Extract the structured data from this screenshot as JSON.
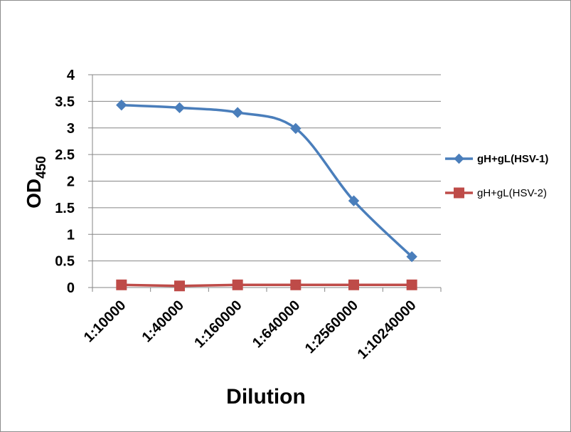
{
  "chart_data": {
    "type": "line",
    "categories": [
      "1:10000",
      "1:40000",
      "1:160000",
      "1:640000",
      "1:2560000",
      "1:10240000"
    ],
    "series": [
      {
        "name": "gH+gL(HSV-1)",
        "values": [
          3.43,
          3.38,
          3.29,
          2.99,
          1.63,
          0.58
        ],
        "color": "#4a7ebb",
        "marker": "diamond",
        "smooth": true,
        "legend_bold": true
      },
      {
        "name": "gH+gL(HSV-2)",
        "values": [
          0.05,
          0.03,
          0.05,
          0.05,
          0.05,
          0.05
        ],
        "color": "#be4b48",
        "marker": "square",
        "smooth": false,
        "legend_bold": false
      }
    ],
    "yticks": [
      "0",
      "0.5",
      "1",
      "1.5",
      "2",
      "2.5",
      "3",
      "3.5",
      "4"
    ],
    "ylim": [
      0,
      4
    ],
    "xlabel": "Dilution",
    "ylabel_main": "OD",
    "ylabel_sub": "450",
    "grid": true,
    "legend_position": "right"
  }
}
